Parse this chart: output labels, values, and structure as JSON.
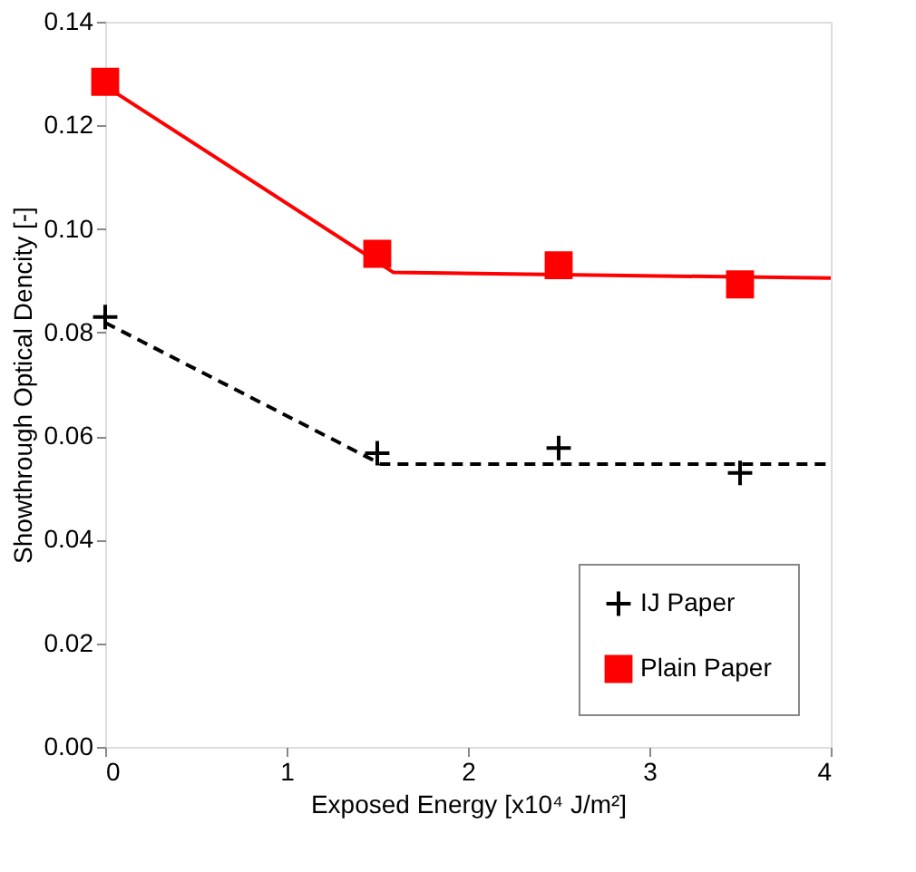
{
  "chart_data": {
    "type": "scatter",
    "xlabel": "Exposed Energy [x10⁴ J/m²]",
    "ylabel": "Showthrough Optical Dencity [-]",
    "xlim": [
      0,
      4
    ],
    "xticks": [
      0,
      1,
      2,
      3,
      4
    ],
    "ylim": [
      0,
      0.14
    ],
    "yticks": [
      {
        "value": 0,
        "label": "0.00"
      },
      {
        "value": 0.02,
        "label": "0.02"
      },
      {
        "value": 0.04,
        "label": "0.04"
      },
      {
        "value": 0.06,
        "label": "0.06"
      },
      {
        "value": 0.08,
        "label": "0.08"
      },
      {
        "value": 0.1,
        "label": "0.10"
      },
      {
        "value": 0.12,
        "label": "0.12"
      },
      {
        "value": 0.14,
        "label": "0.14"
      }
    ],
    "grid": false,
    "legend": "bottom right",
    "series": [
      {
        "name": "IJ Paper",
        "marker": "cross",
        "color": "#000000",
        "x": [
          0,
          1.5,
          2.5,
          3.5
        ],
        "values": [
          0.083,
          0.0567,
          0.0577,
          0.0529
        ]
      },
      {
        "name": "Plain Paper",
        "marker": "square",
        "color": "#ff0000",
        "x": [
          0,
          1.5,
          2.5,
          3.5
        ],
        "values": [
          0.1284,
          0.0952,
          0.093,
          0.0893
        ]
      },
      {
        "type": "line",
        "line_style": "dashed",
        "color": "#000000",
        "x": [
          0,
          1.52,
          4
        ],
        "values": [
          0.0819,
          0.0546,
          0.0546
        ]
      },
      {
        "type": "line",
        "line_style": "solid",
        "color": "#ff0000",
        "x": [
          0,
          1.59,
          4
        ],
        "values": [
          0.1276,
          0.0916,
          0.0905
        ]
      }
    ]
  }
}
